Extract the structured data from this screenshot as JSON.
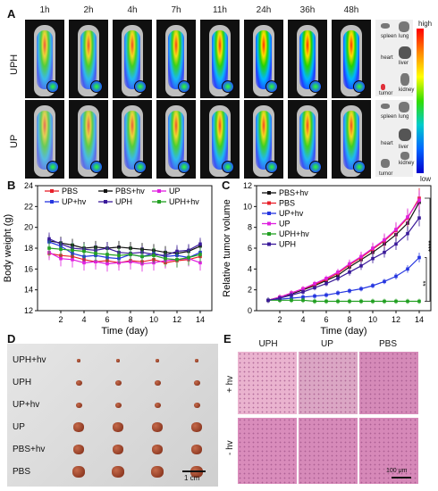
{
  "panels": {
    "A": {
      "label": "A",
      "times": [
        "1h",
        "2h",
        "4h",
        "7h",
        "11h",
        "24h",
        "36h",
        "48h"
      ],
      "rows": [
        "UPH",
        "UP"
      ],
      "organs": [
        "spleen",
        "lung",
        "heart",
        "liver",
        "kidney",
        "tumor"
      ],
      "colorbar": {
        "high": "high",
        "low": "low"
      }
    },
    "B": {
      "label": "B"
    },
    "C": {
      "label": "C"
    },
    "D": {
      "label": "D",
      "groups": [
        "UPH+hv",
        "UPH",
        "UP+hv",
        "UP",
        "PBS+hv",
        "PBS"
      ],
      "scale": "1 cm"
    },
    "E": {
      "label": "E",
      "columns": [
        "UPH",
        "UP",
        "PBS"
      ],
      "rows": [
        "+ hv",
        "- hv"
      ],
      "scale": "100 μm"
    }
  },
  "chart_data": [
    {
      "type": "line",
      "panel": "B",
      "xlabel": "Time (day)",
      "ylabel": "Body weight (g)",
      "xlim": [
        0,
        15
      ],
      "ylim": [
        12,
        24
      ],
      "xticks": [
        2,
        4,
        6,
        8,
        10,
        12,
        14
      ],
      "yticks": [
        12,
        14,
        16,
        18,
        20,
        22,
        24
      ],
      "x": [
        1,
        2,
        3,
        4,
        5,
        6,
        7,
        8,
        9,
        10,
        11,
        12,
        13,
        14
      ],
      "legend": "top",
      "series": [
        {
          "name": "PBS",
          "color": "#e8202a",
          "values": [
            17.5,
            17.3,
            17.2,
            16.9,
            16.7,
            16.8,
            16.6,
            16.8,
            16.7,
            16.9,
            16.6,
            16.8,
            16.9,
            17.2
          ]
        },
        {
          "name": "PBS+hv",
          "color": "#111111",
          "values": [
            18.7,
            18.5,
            18.3,
            18.0,
            18.1,
            18.0,
            18.1,
            18.0,
            17.9,
            17.8,
            17.6,
            17.5,
            17.7,
            18.2
          ]
        },
        {
          "name": "UP",
          "color": "#e020e0",
          "values": [
            17.6,
            17.0,
            16.9,
            16.6,
            16.7,
            16.5,
            16.6,
            16.7,
            16.5,
            16.6,
            16.8,
            16.9,
            17.0,
            16.6
          ]
        },
        {
          "name": "UP+hv",
          "color": "#2536e0",
          "values": [
            18.6,
            18.2,
            17.5,
            17.2,
            17.3,
            17.1,
            17.0,
            17.4,
            17.2,
            17.5,
            17.2,
            17.3,
            17.1,
            17.6
          ]
        },
        {
          "name": "UPH",
          "color": "#3a1a9a",
          "values": [
            18.9,
            18.4,
            18.0,
            17.9,
            17.8,
            18.0,
            17.6,
            17.5,
            17.6,
            17.4,
            17.3,
            17.7,
            17.8,
            18.4
          ]
        },
        {
          "name": "UPH+hv",
          "color": "#22a022",
          "values": [
            18.0,
            17.9,
            17.8,
            17.7,
            17.5,
            17.4,
            17.3,
            17.4,
            17.2,
            17.3,
            17.0,
            16.9,
            17.1,
            17.4
          ]
        }
      ]
    },
    {
      "type": "line",
      "panel": "C",
      "xlabel": "Time (day)",
      "ylabel": "Relative tumor volume",
      "xlim": [
        0,
        15
      ],
      "ylim": [
        0,
        12
      ],
      "xticks": [
        2,
        4,
        6,
        8,
        10,
        12,
        14
      ],
      "yticks": [
        0,
        2,
        4,
        6,
        8,
        10,
        12
      ],
      "x": [
        1,
        2,
        3,
        4,
        5,
        6,
        7,
        8,
        9,
        10,
        11,
        12,
        13,
        14
      ],
      "legend": "top-left",
      "annotations": [
        "****",
        "**"
      ],
      "series": [
        {
          "name": "PBS+hv",
          "color": "#111111",
          "values": [
            1.0,
            1.3,
            1.6,
            2.0,
            2.4,
            2.9,
            3.4,
            4.2,
            4.9,
            5.6,
            6.4,
            7.3,
            8.4,
            10.4
          ]
        },
        {
          "name": "PBS",
          "color": "#e8202a",
          "values": [
            1.0,
            1.3,
            1.7,
            2.1,
            2.5,
            3.0,
            3.6,
            4.4,
            5.1,
            5.9,
            6.7,
            7.7,
            8.9,
            10.8
          ]
        },
        {
          "name": "UP+hv",
          "color": "#2536e0",
          "values": [
            1.0,
            1.1,
            1.2,
            1.3,
            1.4,
            1.5,
            1.7,
            1.9,
            2.1,
            2.4,
            2.8,
            3.3,
            4.0,
            5.1
          ]
        },
        {
          "name": "UP",
          "color": "#e020e0",
          "values": [
            1.0,
            1.3,
            1.7,
            2.1,
            2.6,
            3.1,
            3.7,
            4.5,
            5.2,
            6.0,
            6.8,
            7.8,
            9.0,
            10.6
          ]
        },
        {
          "name": "UPH+hv",
          "color": "#22a022",
          "values": [
            1.0,
            1.0,
            1.0,
            1.0,
            0.9,
            0.9,
            0.9,
            0.9,
            0.9,
            0.9,
            0.9,
            0.9,
            0.9,
            0.9
          ]
        },
        {
          "name": "UPH",
          "color": "#3a1a9a",
          "values": [
            1.0,
            1.2,
            1.5,
            1.8,
            2.2,
            2.6,
            3.1,
            3.7,
            4.3,
            5.0,
            5.6,
            6.4,
            7.4,
            8.9
          ]
        }
      ]
    }
  ]
}
